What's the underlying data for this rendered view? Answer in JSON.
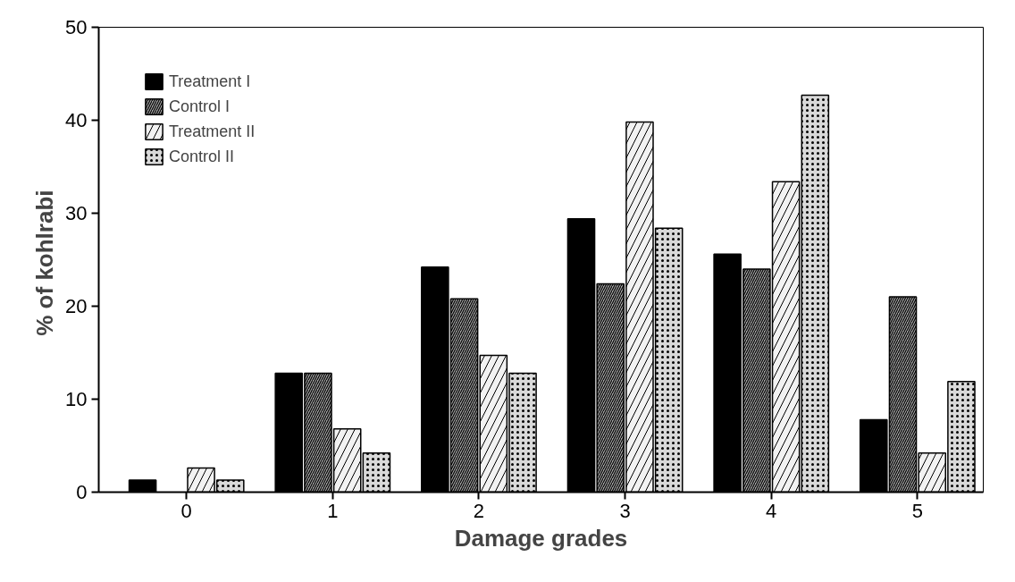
{
  "chart_data": {
    "type": "bar",
    "xlabel": "Damage grades",
    "ylabel": "% of  kohlrabi",
    "categories": [
      "0",
      "1",
      "2",
      "3",
      "4",
      "5"
    ],
    "series": [
      {
        "name": "Treatment I",
        "color": "#000000",
        "values": [
          1.3,
          12.8,
          24.2,
          29.4,
          25.6,
          7.8
        ]
      },
      {
        "name": "Control I",
        "color": "#a6a6a6",
        "values": [
          null,
          12.8,
          20.8,
          22.4,
          24.0,
          21.0
        ]
      },
      {
        "name": "Treatment II",
        "color": "#f2f2f2",
        "values": [
          2.6,
          6.8,
          14.7,
          39.8,
          33.4,
          4.2
        ]
      },
      {
        "name": "Control II",
        "color": "#d9d9d9",
        "values": [
          1.3,
          4.2,
          12.8,
          28.4,
          42.7,
          11.9
        ]
      }
    ],
    "ylim": [
      0,
      50
    ],
    "yticks": [
      0,
      10,
      20,
      30,
      40,
      50
    ],
    "grid": false,
    "legend": "top left"
  }
}
